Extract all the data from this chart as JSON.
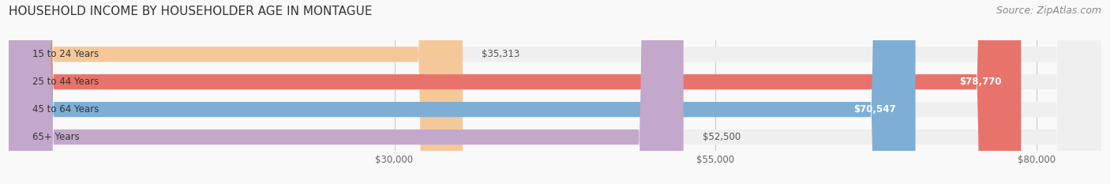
{
  "title": "HOUSEHOLD INCOME BY HOUSEHOLDER AGE IN MONTAGUE",
  "source": "Source: ZipAtlas.com",
  "categories": [
    "15 to 24 Years",
    "25 to 44 Years",
    "45 to 64 Years",
    "65+ Years"
  ],
  "values": [
    35313,
    78770,
    70547,
    52500
  ],
  "bar_colors": [
    "#f5c89a",
    "#e8736a",
    "#7eaed4",
    "#c4a8cc"
  ],
  "bar_bg_color": "#efefef",
  "value_labels": [
    "$35,313",
    "$78,770",
    "$70,547",
    "$52,500"
  ],
  "x_ticks": [
    30000,
    55000,
    80000
  ],
  "x_tick_labels": [
    "$30,000",
    "$55,000",
    "$80,000"
  ],
  "x_min": 0,
  "x_max": 85000,
  "title_fontsize": 11,
  "source_fontsize": 9,
  "label_fontsize": 8.5,
  "tick_fontsize": 8.5,
  "background_color": "#f9f9f9"
}
